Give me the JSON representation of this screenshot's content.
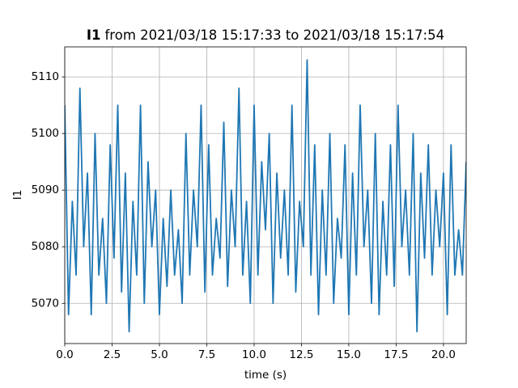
{
  "chart_data": {
    "type": "line",
    "title_name": "I1",
    "title": "from 2021/03/18 15:17:33 to 2021/03/18 15:17:54",
    "x_label": "time (s)",
    "y_label": "I1",
    "color": "#1f77b4",
    "grid": true,
    "xlim": [
      0,
      21.2
    ],
    "ylim": [
      5062.9,
      5115.3
    ],
    "xticks": [
      {
        "value": 0,
        "label": "0.0"
      },
      2.5,
      {
        "value": 5,
        "label": "5.0"
      },
      7.5,
      {
        "value": 10,
        "label": "10.0"
      },
      12.5,
      {
        "value": 15,
        "label": "15.0"
      },
      17.5,
      {
        "value": 20,
        "label": "20.0"
      }
    ],
    "yticks": [
      5070,
      5080,
      5090,
      5100,
      5110
    ],
    "x": [
      0,
      0.2,
      0.4,
      0.6,
      0.8,
      1,
      1.2,
      1.4,
      1.6,
      1.8,
      2,
      2.2,
      2.4,
      2.6,
      2.8,
      3,
      3.2,
      3.4,
      3.6,
      3.8,
      4,
      4.2,
      4.4,
      4.6,
      4.8,
      5,
      5.2,
      5.4,
      5.6,
      5.8,
      6,
      6.2,
      6.4,
      6.6,
      6.8,
      7,
      7.2,
      7.4,
      7.6,
      7.8,
      8,
      8.2,
      8.4,
      8.6,
      8.8,
      9,
      9.2,
      9.4,
      9.6,
      9.8,
      10,
      10.2,
      10.4,
      10.6,
      10.8,
      11,
      11.2,
      11.4,
      11.6,
      11.8,
      12,
      12.2,
      12.4,
      12.6,
      12.8,
      13,
      13.2,
      13.4,
      13.6,
      13.8,
      14,
      14.2,
      14.4,
      14.6,
      14.8,
      15,
      15.2,
      15.4,
      15.6,
      15.8,
      16,
      16.2,
      16.4,
      16.6,
      16.8,
      17,
      17.2,
      17.4,
      17.6,
      17.8,
      18,
      18.2,
      18.4,
      18.6,
      18.8,
      19,
      19.2,
      19.4,
      19.6,
      19.8,
      20,
      20.2,
      20.4,
      20.6,
      20.8,
      21,
      21.2
    ],
    "values": [
      5105,
      5068,
      5088,
      5075,
      5108,
      5080,
      5093,
      5068,
      5100,
      5075,
      5085,
      5070,
      5098,
      5078,
      5105,
      5072,
      5093,
      5065,
      5088,
      5075,
      5105,
      5070,
      5095,
      5080,
      5090,
      5068,
      5085,
      5073,
      5090,
      5075,
      5083,
      5070,
      5100,
      5075,
      5090,
      5080,
      5105,
      5072,
      5098,
      5075,
      5085,
      5078,
      5102,
      5073,
      5090,
      5080,
      5108,
      5075,
      5088,
      5070,
      5105,
      5075,
      5095,
      5083,
      5100,
      5070,
      5093,
      5078,
      5090,
      5075,
      5105,
      5072,
      5088,
      5080,
      5113,
      5075,
      5098,
      5068,
      5090,
      5075,
      5100,
      5070,
      5085,
      5078,
      5098,
      5068,
      5093,
      5075,
      5105,
      5080,
      5090,
      5070,
      5100,
      5068,
      5088,
      5075,
      5098,
      5073,
      5105,
      5080,
      5090,
      5075,
      5100,
      5065,
      5093,
      5078,
      5098,
      5075,
      5090,
      5080,
      5093,
      5068,
      5098,
      5075,
      5083,
      5075,
      5095
    ]
  }
}
